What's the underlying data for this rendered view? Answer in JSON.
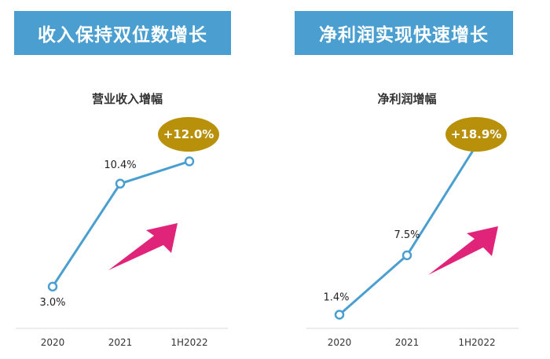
{
  "panels": {
    "left": {
      "banner": "收入保持双位数增长"
    },
    "right": {
      "banner": "净利润实现快速增长"
    }
  },
  "colors": {
    "banner": "#4a9fd0",
    "line": "#4a9fd0",
    "badge": "#b8900a",
    "arrow": "#e0247a"
  },
  "chart_data": [
    {
      "type": "line",
      "title": "营业收入增幅",
      "categories": [
        "2020",
        "2021",
        "1H2022"
      ],
      "values": [
        3.0,
        10.4,
        12.0
      ],
      "labels": [
        "3.0%",
        "10.4%",
        "+12.0%"
      ],
      "badge": "+12.0%",
      "ylim": [
        0,
        14
      ],
      "grid": false,
      "legend": "none"
    },
    {
      "type": "line",
      "title": "净利润增幅",
      "categories": [
        "2020",
        "2021",
        "1H2022"
      ],
      "values": [
        1.4,
        7.5,
        18.9
      ],
      "labels": [
        "1.4%",
        "7.5%",
        "+18.9%"
      ],
      "badge": "+18.9%",
      "ylim": [
        0,
        20
      ],
      "grid": false,
      "legend": "none"
    }
  ]
}
